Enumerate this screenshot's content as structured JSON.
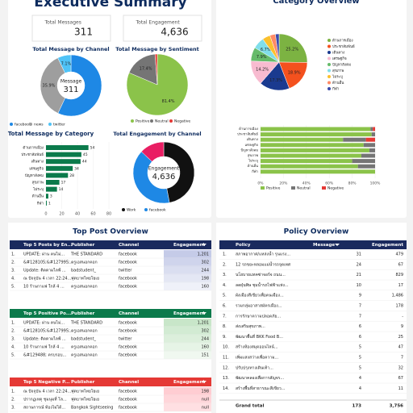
{
  "header": {
    "title": "Executive Summary"
  },
  "kpis": [
    {
      "label": "Total Messages",
      "value": "311"
    },
    {
      "label": "Total Engagement",
      "value": "4,636"
    }
  ],
  "chart_data": [
    {
      "type": "donut",
      "title": "Total Message by Channel",
      "categories": [
        "facebook",
        "news",
        "twitter"
      ],
      "values": [
        57.0,
        35.9,
        7.1
      ],
      "value_labels": [
        null,
        "35.9%",
        "7.1%"
      ],
      "colors": [
        "#1e88e5",
        "#9e9e9e",
        "#4fc3f7"
      ],
      "center_label": "Message",
      "center_value": "311"
    },
    {
      "type": "pie",
      "title": "Total Message by Sentiment",
      "categories": [
        "Positive",
        "Neutral",
        "Negative"
      ],
      "values": [
        81.4,
        17.4,
        1.2
      ],
      "value_labels": [
        "81.4%",
        "17.4%",
        null
      ],
      "colors": [
        "#8bc34a",
        "#757575",
        "#e53935"
      ]
    },
    {
      "type": "hbar",
      "title": "Total Message by Category",
      "categories": [
        "ด้านการเมือง",
        "ประชาสัมพันธ์",
        "เดินทาง",
        "เศรษฐกิจ",
        "ปัญหาสังคม",
        "สุขภาพ",
        "ไม่ระบุ",
        "ด้านอื่น",
        "กีฬา"
      ],
      "values": [
        54,
        45,
        44,
        34,
        28,
        17,
        14,
        3,
        1
      ],
      "color": "#0b7a4b",
      "xlim": [
        0,
        80
      ],
      "xticks": [
        0,
        20,
        40,
        60,
        80
      ]
    },
    {
      "type": "donut",
      "title": "Total Engagement by Channel",
      "categories": [
        "Work",
        "facebook",
        null
      ],
      "values": [
        47,
        40,
        13
      ],
      "colors": [
        "#111111",
        "#1e88e5",
        "#e91e63"
      ],
      "center_label": "Engagement",
      "center_value": "4,636"
    },
    {
      "type": "pie",
      "title": "Category Overview",
      "categories": [
        "ด้านการเมือง",
        "ประชาสัมพันธ์",
        "เดินทาง",
        "เศรษฐกิจ",
        "ปัญหาสังคม",
        "สุขภาพ",
        "ไม่ระบุ",
        "ด้านอื่น",
        "กีฬา"
      ],
      "values": [
        25.2,
        18.9,
        17.3,
        14.2,
        7.9,
        6.7,
        4.5,
        3.2,
        2.1
      ],
      "value_labels": [
        "25.2%",
        "18.9%",
        "17.3%",
        "14.2%",
        "7.9%",
        "6.7%",
        null,
        null,
        null
      ],
      "colors": [
        "#7cb342",
        "#f4511e",
        "#1a3a8f",
        "#f8bbd0",
        "#66bb6a",
        "#80deea",
        "#fbc02d",
        "#ff8a65",
        "#3949ab"
      ]
    },
    {
      "type": "stacked-hbar",
      "categories": [
        "ด้านการเมือง",
        "ประชาสัมพันธ์",
        "เดินทาง",
        "เศรษฐกิจ",
        "ปัญหาสังคม",
        "สุขภาพ",
        "ไม่ระบุ",
        "ด้านอื่น",
        "กีฬา"
      ],
      "series": [
        {
          "name": "Positive",
          "color": "#8bc34a",
          "values": [
            96,
            97,
            72,
            90,
            95,
            88,
            80,
            85,
            100
          ]
        },
        {
          "name": "Neutral",
          "color": "#757575",
          "values": [
            2,
            3,
            20,
            10,
            5,
            12,
            20,
            15,
            0
          ]
        },
        {
          "name": "Negative",
          "color": "#e53935",
          "values": [
            2,
            0,
            8,
            0,
            0,
            0,
            0,
            0,
            0
          ]
        }
      ],
      "xlim": [
        0,
        100
      ],
      "xticks": [
        {
          "value": 0,
          "label": "0%"
        },
        {
          "value": 20,
          "label": "20%"
        },
        {
          "value": 40,
          "label": "40%"
        },
        {
          "value": 60,
          "label": "60%"
        },
        {
          "value": 80,
          "label": "80%"
        },
        {
          "value": 100,
          "label": "100%"
        }
      ]
    }
  ],
  "top_post": {
    "title": "Top Post Overview",
    "tables": [
      {
        "columns": [
          "Top 5 Posts by En...",
          "Publisher",
          "Channel",
          "Engagement"
        ],
        "rows": [
          [
            "1.",
            "UPDATE: ผ่าน คนไม่...",
            "THE STANDARD",
            "facebook",
            "1,201"
          ],
          [
            "2.",
            "&#128105;&#127995;...",
            "ครูเอสนอกคอก",
            "facebook",
            "302"
          ],
          [
            "3.",
            "Update: ติดตามไลฟ์ ...",
            "badstudent_",
            "twitter",
            "244"
          ],
          [
            "4.",
            "ณ ปัจจุบัน 4 เวลา 22:24...",
            "ฟุตบาทไทยโยเย",
            "facebook",
            "198"
          ],
          [
            "5.",
            "10 ร้านกาแฟ ใกล้ 4 ...",
            "ครูเอสนอกคอก",
            "facebook",
            "160"
          ]
        ]
      },
      {
        "columns": [
          "Top 5 Positive Po...",
          "Publisher",
          "Channel",
          "Engagement"
        ],
        "rows": [
          [
            "1.",
            "UPDATE: ผ่าน คนไม่...",
            "THE STANDARD",
            "facebook",
            "1,201"
          ],
          [
            "2.",
            "&#128105;&#127995;...",
            "ครูเอสนอกคอก",
            "facebook",
            "302"
          ],
          [
            "3.",
            "Update: ติดตามไลฟ์ ...",
            "badstudent_",
            "twitter",
            "244"
          ],
          [
            "4.",
            "10 ร้านกาแฟ ใกล้ 4 ...",
            "ครูเอสนอกคอก",
            "facebook",
            "160"
          ],
          [
            "5.",
            "&#129488; ครบรอบ...",
            "ครูเอสนอกคอก",
            "facebook",
            "151"
          ]
        ]
      },
      {
        "columns": [
          "Top 5 Negative P...",
          "Publisher",
          "Channel",
          "Engagement"
        ],
        "rows": [
          [
            "1.",
            "ณ ปัจจุบัน 4 เวลา 22:24...",
            "ฟุตบาทไทยโยเย",
            "facebook",
            "198"
          ],
          [
            "2.",
            "ปรากฏเหตุ ชุมนุมที่ โล...",
            "ฟุตบาทไทยโยเย",
            "facebook",
            "null"
          ],
          [
            "3.",
            "สถานการณ์ ท้องไม่ได้...",
            "Bangkok Sightseeing",
            "facebook",
            "null"
          ]
        ]
      }
    ]
  },
  "policy": {
    "title": "Policy Overview",
    "columns": [
      "Policy",
      "Message",
      "Engagement"
    ],
    "rows": [
      [
        "1.",
        "สภาพอากาศ/แหล่งน้ำ รุนแรง...",
        "31",
        "479"
      ],
      [
        "2.",
        "12 รถขยะหลอมแม่น้ำรถจุดเทศ",
        "24",
        "67"
      ],
      [
        "3.",
        "นโยบายแทคซ่าจอร์จ ถนน...",
        "21",
        "829"
      ],
      [
        "4.",
        "ลดฝุ่นพิษ ชุมน้ำรถไฟฟ้าแห่ง...",
        "10",
        "17"
      ],
      [
        "5.",
        "ผังเมืองสีเขียวเพื่อคนเมือง...",
        "9",
        "1,486"
      ],
      [
        "6.",
        "รวมกลุ่มอาสาสมัครเมือง...",
        "7",
        "178"
      ],
      [
        "7.",
        "การรักษาความปลอดภัย...",
        "7",
        "-"
      ],
      [
        "8.",
        "ส่งเสริมสุขภาพ...",
        "6",
        "9"
      ],
      [
        "9.",
        "พัฒนาพื้นที่ BKK Food B...",
        "6",
        "25"
      ],
      [
        "10.",
        "สร้างห้องสมุดออนไลน์...",
        "5",
        "47"
      ],
      [
        "11.",
        "เพิ่มแสงสว่างเพื่อความ...",
        "5",
        "7"
      ],
      [
        "12.",
        "ปรับปรุงทางเดินเท้า...",
        "5",
        "32"
      ],
      [
        "13.",
        "พัฒนาคลองเพื่อการสัญจร...",
        "4",
        "67"
      ],
      [
        "14.",
        "สร้างพื้นที่สาธารณะสีเขียว...",
        "4",
        "11"
      ]
    ],
    "total": [
      "Grand total",
      "173",
      "3,756"
    ]
  }
}
